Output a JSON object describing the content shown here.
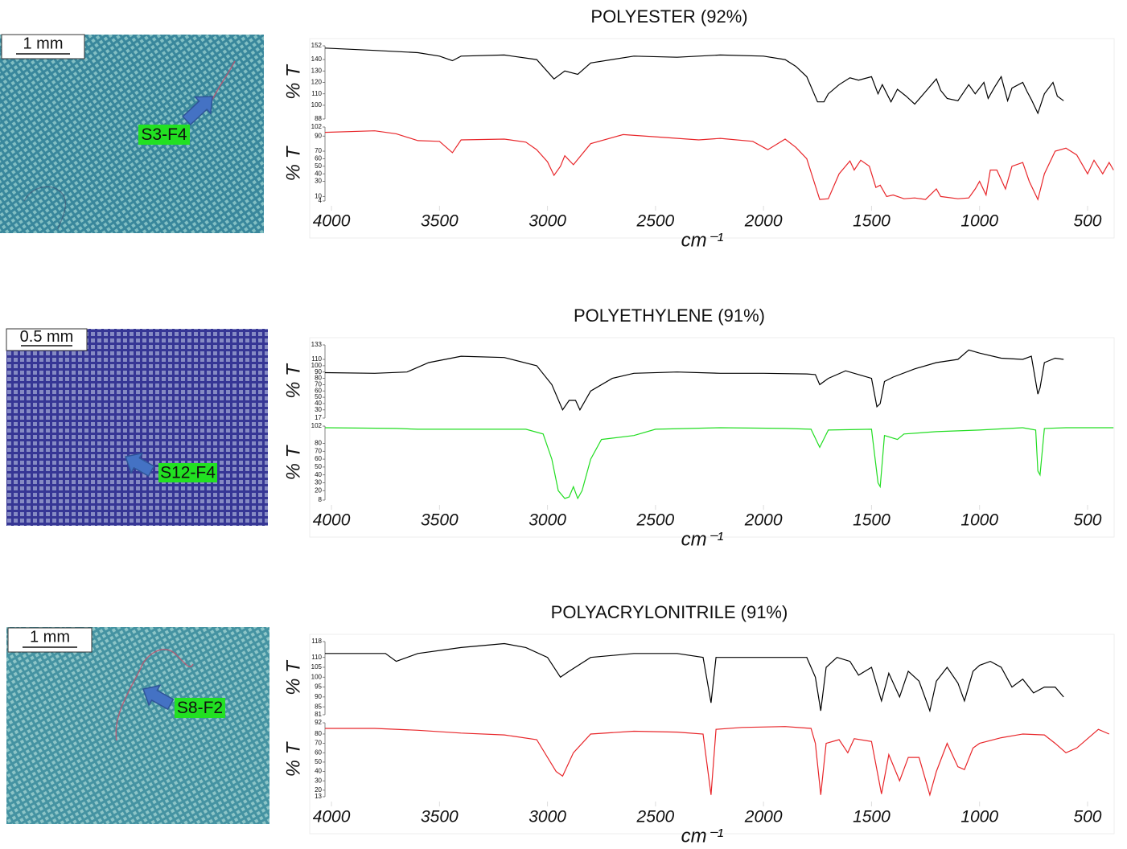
{
  "chart_data": [
    {
      "type": "line",
      "title": "POLYESTER (92%)",
      "xlabel": "cm⁻¹",
      "xlim": [
        4030,
        377
      ],
      "xticks": [
        4000,
        3500,
        3000,
        2500,
        2000,
        1500,
        1000,
        500
      ],
      "scale_bar": "1 mm",
      "sample_label": "S3-F4",
      "subplots": [
        {
          "ylabel": "% T",
          "ylim": [
            88,
            152
          ],
          "yticks": [
            88,
            100,
            110,
            120,
            130,
            140,
            152
          ],
          "color": "#000000",
          "x": [
            4030,
            3800,
            3600,
            3500,
            3440,
            3400,
            3200,
            3050,
            2970,
            2920,
            2860,
            2800,
            2600,
            2400,
            2200,
            2000,
            1900,
            1850,
            1800,
            1750,
            1720,
            1700,
            1650,
            1600,
            1560,
            1500,
            1470,
            1450,
            1410,
            1380,
            1340,
            1300,
            1250,
            1200,
            1180,
            1150,
            1100,
            1050,
            1020,
            980,
            960,
            930,
            900,
            870,
            850,
            800,
            780,
            760,
            730,
            700,
            660,
            640,
            611
          ],
          "values": [
            150,
            148,
            146,
            143,
            139,
            143,
            144,
            140,
            123,
            130,
            127,
            137,
            143,
            142,
            144,
            143,
            140,
            134,
            125,
            103,
            103,
            110,
            118,
            124,
            122,
            125,
            110,
            118,
            103,
            114,
            108,
            101,
            112,
            123,
            113,
            106,
            104,
            118,
            110,
            120,
            106,
            116,
            125,
            104,
            115,
            120,
            112,
            105,
            93,
            110,
            120,
            108,
            104
          ]
        },
        {
          "ylabel": "% T",
          "ylim": [
            4,
            102
          ],
          "yticks": [
            4,
            10,
            30,
            40,
            50,
            60,
            70,
            90,
            102
          ],
          "color": "#e8262a",
          "x": [
            4030,
            3800,
            3700,
            3600,
            3500,
            3440,
            3400,
            3200,
            3100,
            3050,
            3000,
            2970,
            2940,
            2920,
            2880,
            2800,
            2650,
            2450,
            2300,
            2200,
            2050,
            1980,
            1900,
            1850,
            1800,
            1740,
            1700,
            1650,
            1600,
            1580,
            1550,
            1510,
            1480,
            1460,
            1430,
            1400,
            1350,
            1300,
            1250,
            1200,
            1180,
            1100,
            1050,
            1020,
            1000,
            970,
            950,
            920,
            880,
            850,
            800,
            770,
            730,
            700,
            650,
            600,
            550,
            500,
            470,
            430,
            400,
            380
          ],
          "values": [
            95,
            97,
            93,
            84,
            83,
            68,
            85,
            86,
            82,
            72,
            56,
            38,
            50,
            64,
            52,
            80,
            92,
            88,
            85,
            87,
            83,
            72,
            86,
            75,
            60,
            6,
            7,
            40,
            57,
            45,
            58,
            50,
            22,
            25,
            10,
            12,
            7,
            8,
            6,
            20,
            10,
            7,
            8,
            20,
            30,
            12,
            45,
            45,
            20,
            50,
            55,
            30,
            6,
            40,
            70,
            74,
            65,
            40,
            58,
            40,
            55,
            45
          ]
        }
      ]
    },
    {
      "type": "line",
      "title": "POLYETHYLENE (91%)",
      "xlabel": "cm⁻¹",
      "xlim": [
        4030,
        377
      ],
      "xticks": [
        4000,
        3500,
        3000,
        2500,
        2000,
        1500,
        1000,
        500
      ],
      "scale_bar": "0.5 mm",
      "sample_label": "S12-F4",
      "subplots": [
        {
          "ylabel": "% T",
          "ylim": [
            17,
            133
          ],
          "yticks": [
            17,
            30,
            40,
            50,
            60,
            70,
            80,
            90,
            100,
            110,
            133
          ],
          "color": "#000000",
          "x": [
            4030,
            3800,
            3650,
            3550,
            3400,
            3200,
            3050,
            2980,
            2930,
            2900,
            2870,
            2850,
            2800,
            2700,
            2600,
            2400,
            2200,
            2000,
            1800,
            1760,
            1740,
            1700,
            1620,
            1550,
            1500,
            1475,
            1460,
            1440,
            1400,
            1300,
            1200,
            1100,
            1050,
            1000,
            900,
            800,
            760,
            730,
            720,
            700,
            650,
            611
          ],
          "values": [
            89,
            88,
            90,
            105,
            115,
            113,
            100,
            70,
            30,
            45,
            45,
            30,
            60,
            80,
            88,
            90,
            88,
            88,
            87,
            86,
            70,
            80,
            92,
            85,
            80,
            35,
            40,
            75,
            82,
            95,
            105,
            110,
            125,
            120,
            112,
            110,
            115,
            55,
            65,
            105,
            112,
            110
          ]
        },
        {
          "ylabel": "% T",
          "ylim": [
            8,
            102
          ],
          "yticks": [
            8,
            20,
            30,
            40,
            50,
            60,
            70,
            80,
            102
          ],
          "color": "#22dd22",
          "x": [
            4030,
            3700,
            3600,
            3400,
            3100,
            3020,
            2980,
            2950,
            2920,
            2900,
            2880,
            2860,
            2840,
            2800,
            2750,
            2600,
            2500,
            2200,
            1900,
            1780,
            1740,
            1700,
            1500,
            1470,
            1460,
            1440,
            1380,
            1350,
            1200,
            1000,
            800,
            740,
            730,
            720,
            700,
            600,
            380
          ],
          "values": [
            100,
            99,
            98,
            98,
            98,
            92,
            60,
            20,
            10,
            12,
            25,
            10,
            20,
            60,
            85,
            90,
            98,
            100,
            99,
            98,
            75,
            97,
            98,
            30,
            25,
            90,
            85,
            92,
            95,
            97,
            100,
            97,
            45,
            40,
            99,
            100,
            100
          ]
        }
      ]
    },
    {
      "type": "line",
      "title": "POLYACRYLONITRILE (91%)",
      "xlabel": "cm⁻¹",
      "xlim": [
        4030,
        377
      ],
      "xticks": [
        4000,
        3500,
        3000,
        2500,
        2000,
        1500,
        1000,
        500
      ],
      "scale_bar": "1 mm",
      "sample_label": "S8-F2",
      "subplots": [
        {
          "ylabel": "% T",
          "ylim": [
            81,
            118
          ],
          "yticks": [
            81,
            85,
            90,
            95,
            100,
            105,
            110,
            118
          ],
          "color": "#000000",
          "x": [
            4030,
            3750,
            3700,
            3600,
            3400,
            3200,
            3100,
            3000,
            2940,
            2900,
            2800,
            2600,
            2400,
            2280,
            2243,
            2220,
            2100,
            1800,
            1760,
            1735,
            1710,
            1660,
            1600,
            1560,
            1500,
            1454,
            1420,
            1370,
            1330,
            1280,
            1230,
            1200,
            1150,
            1100,
            1070,
            1030,
            1000,
            950,
            900,
            850,
            800,
            750,
            700,
            650,
            611
          ],
          "values": [
            112,
            112,
            108,
            112,
            115,
            117,
            115,
            110,
            100,
            103,
            110,
            112,
            112,
            110,
            87,
            110,
            110,
            110,
            100,
            83,
            105,
            110,
            108,
            101,
            105,
            88,
            102,
            90,
            103,
            98,
            83,
            98,
            105,
            97,
            88,
            103,
            106,
            108,
            105,
            95,
            99,
            92,
            95,
            95,
            90
          ]
        },
        {
          "ylabel": "% T",
          "ylim": [
            13,
            92
          ],
          "yticks": [
            13,
            20,
            30,
            40,
            50,
            60,
            70,
            80,
            92
          ],
          "color": "#e8262a",
          "x": [
            4030,
            3800,
            3600,
            3400,
            3200,
            3050,
            2960,
            2930,
            2880,
            2800,
            2600,
            2400,
            2280,
            2243,
            2220,
            2100,
            1900,
            1780,
            1760,
            1735,
            1710,
            1650,
            1610,
            1580,
            1500,
            1454,
            1420,
            1370,
            1330,
            1280,
            1230,
            1200,
            1150,
            1100,
            1070,
            1030,
            1000,
            900,
            800,
            700,
            650,
            600,
            550,
            450,
            400
          ],
          "values": [
            86,
            86,
            84,
            81,
            79,
            74,
            40,
            35,
            60,
            80,
            83,
            82,
            80,
            15,
            85,
            87,
            88,
            86,
            70,
            15,
            70,
            74,
            60,
            75,
            72,
            16,
            58,
            30,
            55,
            55,
            15,
            40,
            70,
            45,
            42,
            65,
            70,
            76,
            80,
            79,
            70,
            60,
            65,
            85,
            80
          ]
        }
      ]
    }
  ]
}
